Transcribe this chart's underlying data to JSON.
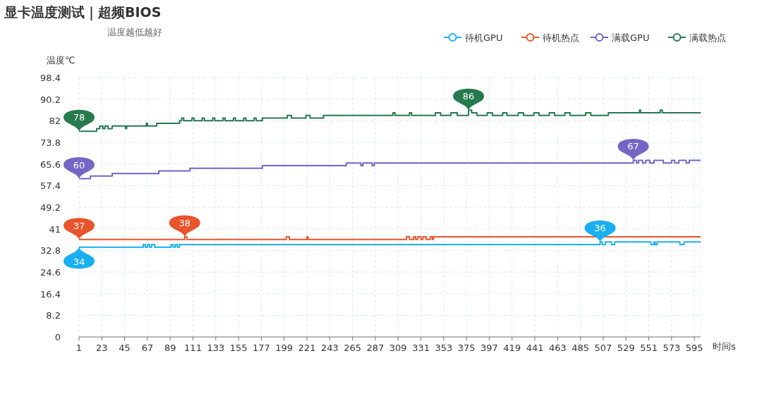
{
  "chart_data": {
    "type": "step",
    "title": "显卡温度测试｜超频BIOS",
    "subtitle": "温度越低越好",
    "xlabel": "时间s",
    "ylabel": "温度℃",
    "xlim": [
      1,
      601
    ],
    "xticks": [
      1,
      23,
      45,
      67,
      89,
      111,
      133,
      155,
      177,
      199,
      221,
      243,
      265,
      287,
      309,
      331,
      353,
      375,
      397,
      419,
      441,
      463,
      485,
      507,
      529,
      551,
      573,
      595
    ],
    "ylim": [
      0,
      98.4
    ],
    "yticks": [
      0,
      8.2,
      16.4,
      24.6,
      32.8,
      41,
      49.2,
      57.4,
      65.6,
      73.8,
      82,
      90.2,
      98.4
    ],
    "grid": true,
    "legend": "top right",
    "marker": "none",
    "series": [
      {
        "name": "待机GPU",
        "color": "#1aaff0",
        "x": [
          1,
          63,
          65,
          67,
          69,
          71,
          74,
          90,
          92,
          94,
          96,
          98,
          504,
          506,
          509,
          515,
          518,
          553,
          556,
          557,
          559,
          581,
          585,
          601
        ],
        "values": [
          34,
          35,
          34,
          35,
          34,
          35,
          34,
          35,
          34,
          35,
          34,
          35,
          36,
          35,
          36,
          35,
          36,
          35,
          36,
          35,
          36,
          35,
          36,
          36
        ]
      },
      {
        "name": "待机热点",
        "color": "#e8542c",
        "x": [
          1,
          103,
          105,
          201,
          204,
          221,
          222,
          317,
          320,
          324,
          326,
          328,
          331,
          333,
          336,
          340,
          342,
          343,
          601
        ],
        "values": [
          37,
          38,
          37,
          38,
          37,
          38,
          37,
          38,
          37,
          38,
          37,
          38,
          37,
          38,
          37,
          38,
          37,
          38,
          38
        ]
      },
      {
        "name": "满载GPU",
        "color": "#7466c4",
        "x": [
          1,
          12,
          33,
          78,
          108,
          178,
          259,
          273,
          275,
          284,
          286,
          536,
          539,
          541,
          545,
          548,
          552,
          556,
          565,
          573,
          576,
          580,
          587,
          590,
          601
        ],
        "values": [
          60,
          61,
          62,
          63,
          64,
          65,
          66,
          65,
          66,
          65,
          66,
          67,
          66,
          67,
          66,
          67,
          66,
          67,
          66,
          67,
          66,
          67,
          66,
          67,
          67
        ]
      },
      {
        "name": "满载热点",
        "color": "#267a4e",
        "x": [
          1,
          18,
          21,
          24,
          26,
          29,
          33,
          46,
          47,
          66,
          67,
          76,
          98,
          100,
          102,
          110,
          112,
          120,
          122,
          130,
          132,
          140,
          142,
          150,
          152,
          160,
          162,
          170,
          172,
          178,
          202,
          206,
          220,
          224,
          237,
          304,
          306,
          320,
          322,
          345,
          350,
          360,
          366,
          377,
          380,
          385,
          395,
          400,
          410,
          414,
          425,
          430,
          440,
          445,
          455,
          460,
          470,
          475,
          490,
          495,
          512,
          542,
          543,
          562,
          564,
          601
        ],
        "values": [
          78,
          79,
          80,
          79,
          80,
          79,
          80,
          79,
          80,
          81,
          80,
          81,
          82,
          83,
          82,
          83,
          82,
          83,
          82,
          83,
          82,
          83,
          82,
          83,
          82,
          83,
          82,
          83,
          82,
          83,
          84,
          83,
          84,
          83,
          84,
          85,
          84,
          85,
          84,
          85,
          84,
          85,
          84,
          86,
          85,
          84,
          85,
          84,
          85,
          84,
          85,
          84,
          85,
          84,
          85,
          84,
          85,
          84,
          85,
          84,
          85,
          86,
          85,
          86,
          85,
          85
        ]
      }
    ],
    "annotations": [
      {
        "text": "34",
        "x": 1,
        "y": 34
      },
      {
        "text": "36",
        "x": 504,
        "y": 36
      },
      {
        "text": "37",
        "x": 1,
        "y": 37
      },
      {
        "text": "38",
        "x": 103,
        "y": 38
      },
      {
        "text": "60",
        "x": 1,
        "y": 60
      },
      {
        "text": "67",
        "x": 536,
        "y": 67
      },
      {
        "text": "78",
        "x": 1,
        "y": 78
      },
      {
        "text": "86",
        "x": 377,
        "y": 86
      }
    ]
  }
}
